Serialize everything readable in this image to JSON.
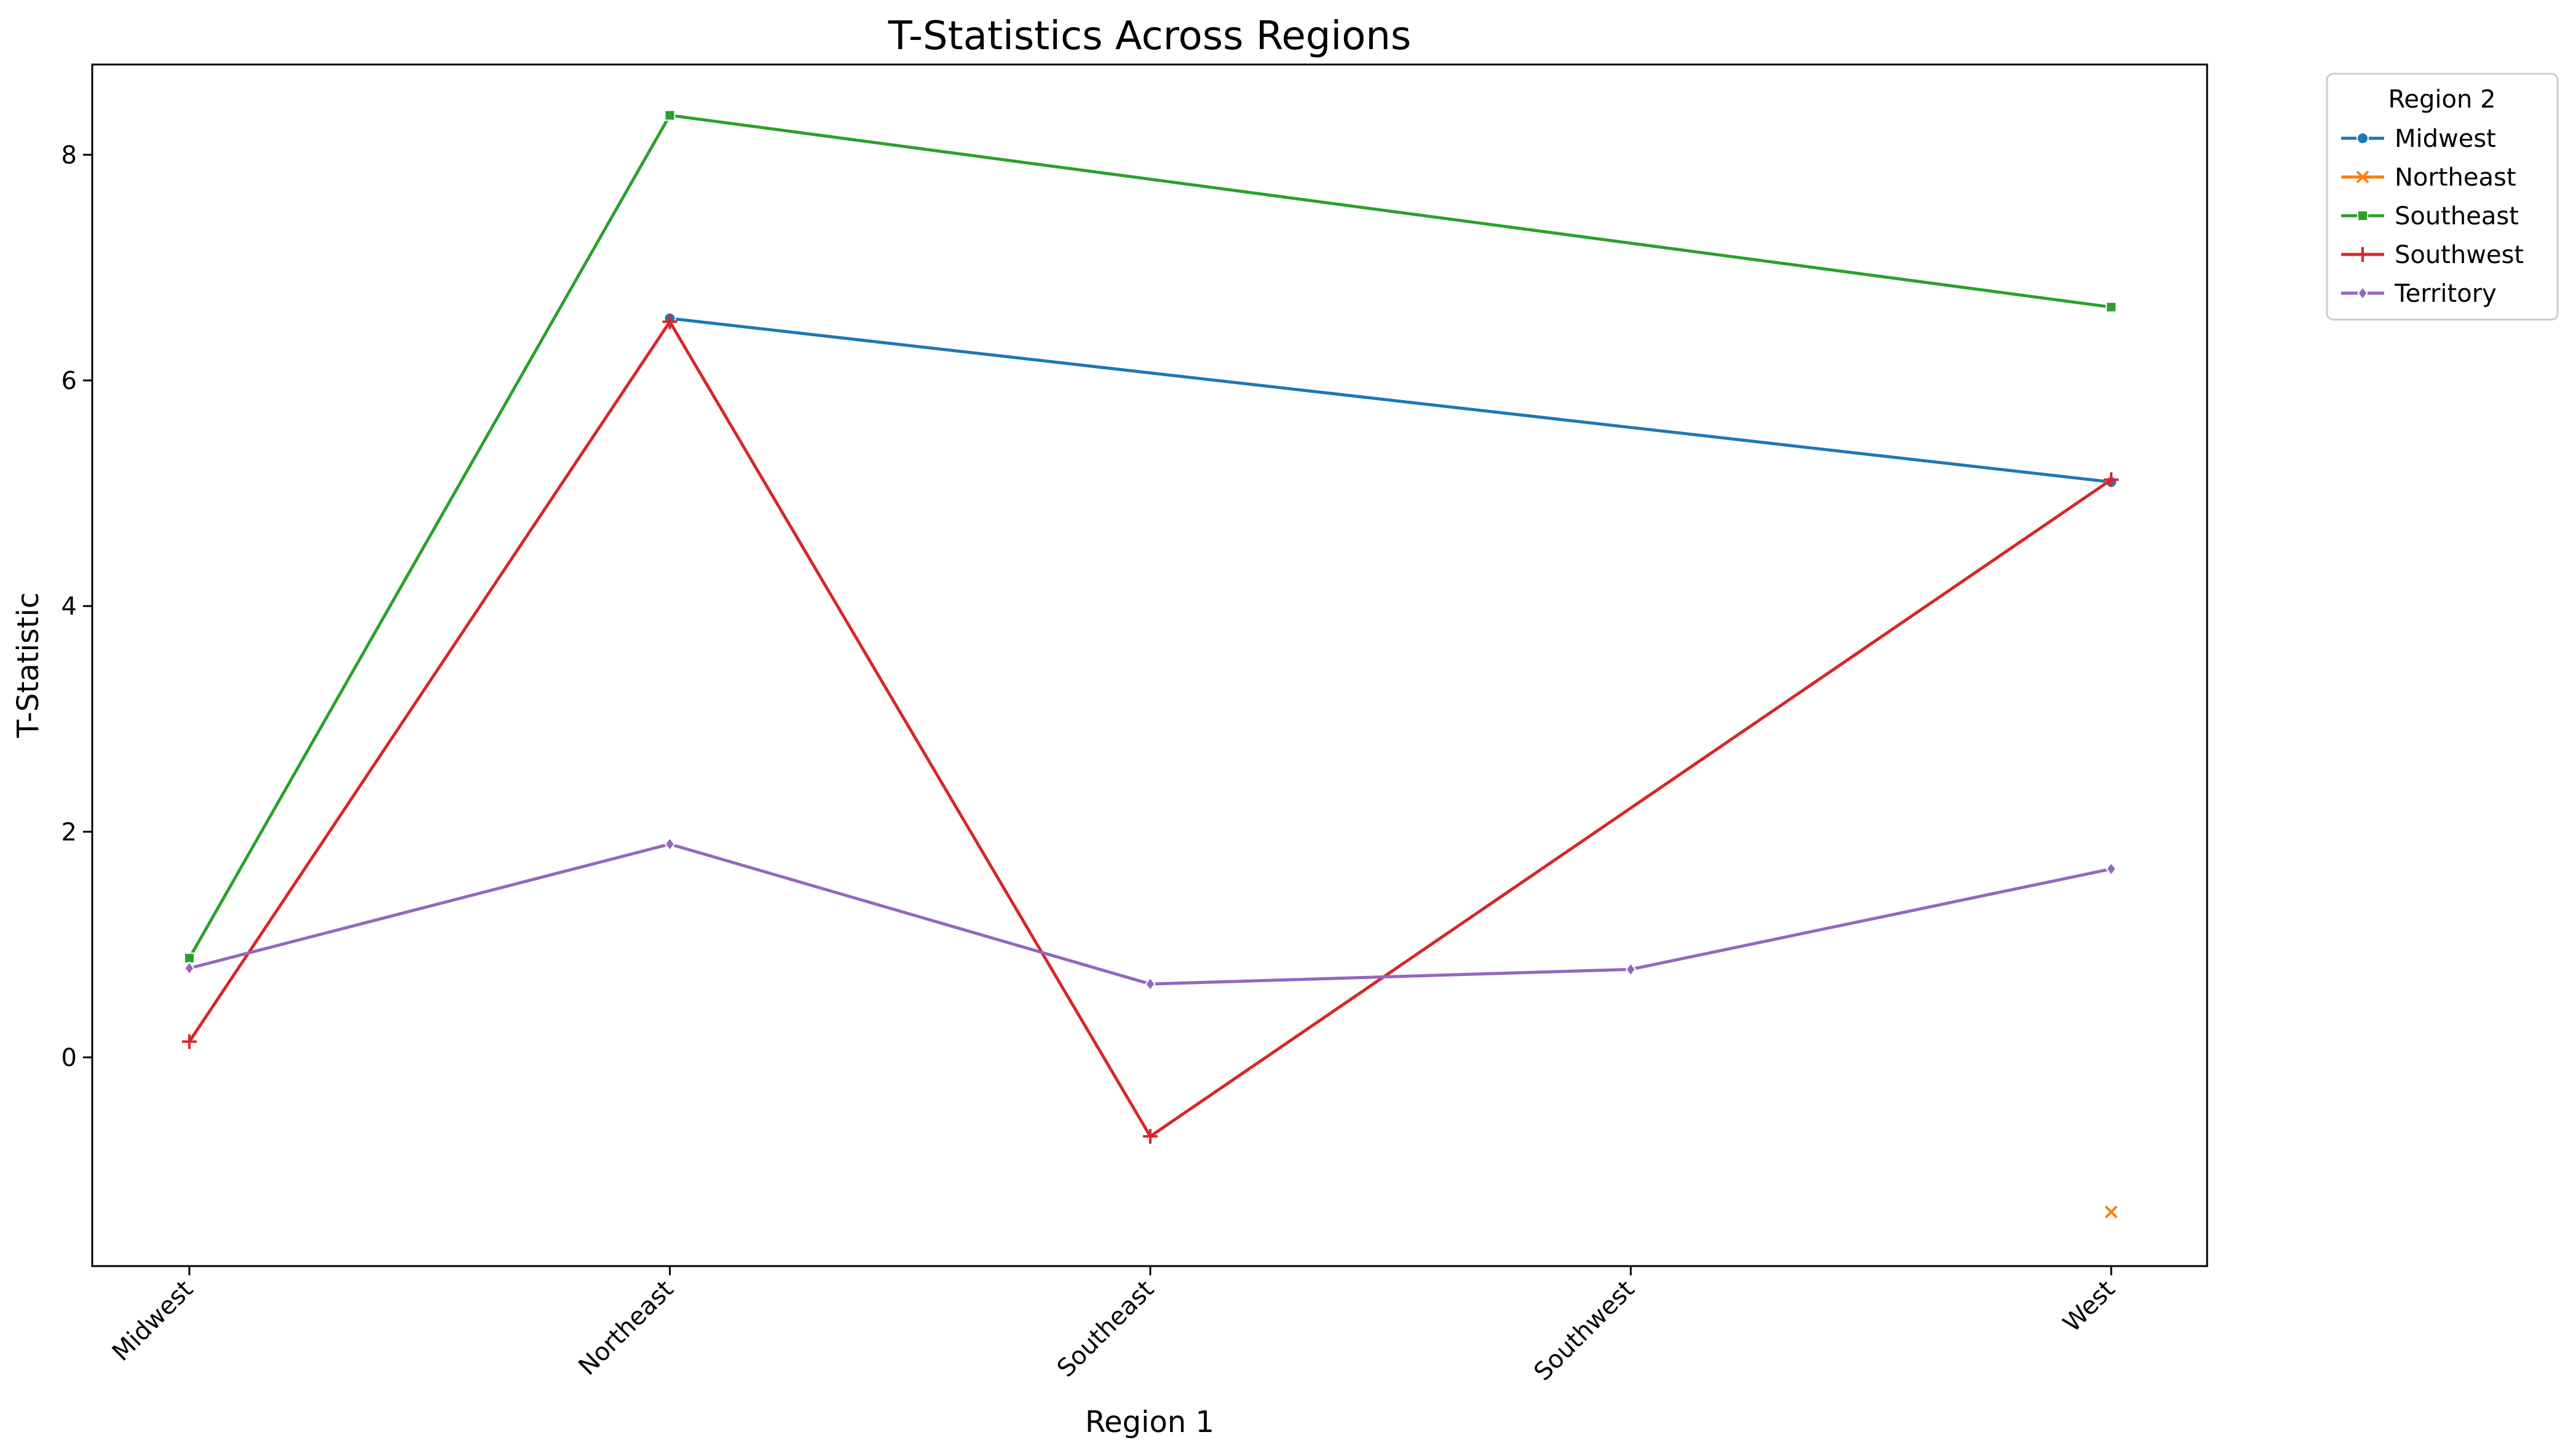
{
  "chart_data": {
    "type": "line",
    "title": "T-Statistics Across Regions",
    "xlabel": "Region 1",
    "ylabel": "T-Statistic",
    "categories": [
      "Midwest",
      "Northeast",
      "Southeast",
      "Southwest",
      "West"
    ],
    "yticks": [
      0,
      2,
      4,
      6,
      8
    ],
    "ylim": [
      -1.85,
      8.8
    ],
    "grid": false,
    "legend": {
      "title": "Region 2",
      "placement": "outside-top-right"
    },
    "series": [
      {
        "name": "Midwest",
        "color": "#1f77b4",
        "marker": "circle",
        "values": [
          null,
          6.55,
          null,
          null,
          5.1
        ]
      },
      {
        "name": "Northeast",
        "color": "#ff7f0e",
        "marker": "x",
        "values": [
          null,
          null,
          null,
          null,
          -1.37
        ]
      },
      {
        "name": "Southeast",
        "color": "#2ca02c",
        "marker": "square",
        "values": [
          0.88,
          8.35,
          null,
          null,
          6.65
        ]
      },
      {
        "name": "Southwest",
        "color": "#d62728",
        "marker": "plus",
        "values": [
          0.14,
          6.52,
          -0.7,
          null,
          5.12
        ]
      },
      {
        "name": "Territory",
        "color": "#9467bd",
        "marker": "diamond",
        "values": [
          0.79,
          1.89,
          0.65,
          0.78,
          1.67
        ]
      }
    ]
  }
}
